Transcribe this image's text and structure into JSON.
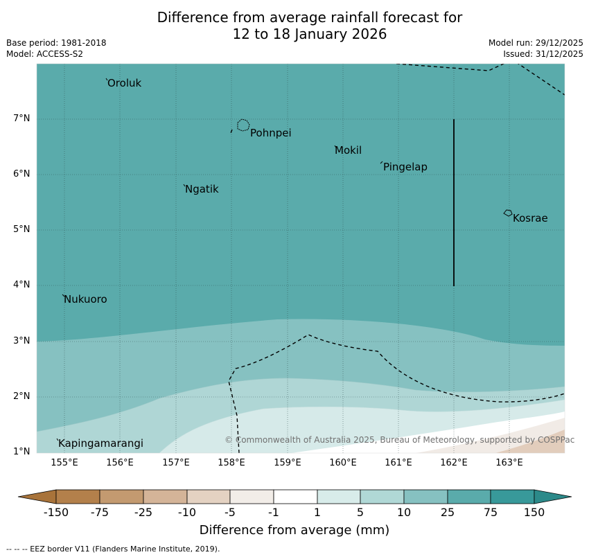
{
  "title": {
    "line1": "Difference from average rainfall forecast for",
    "line2": "12 to 18 January 2026"
  },
  "meta": {
    "base_period": "Base period: 1981-2018",
    "model": "Model: ACCESS-S2",
    "model_run": "Model run: 29/12/2025",
    "issued": "Issued: 31/12/2025"
  },
  "axes": {
    "lat_labels": [
      "7°N",
      "6°N",
      "5°N",
      "4°N",
      "3°N",
      "2°N",
      "1°N"
    ],
    "lon_labels": [
      "155°E",
      "156°E",
      "157°E",
      "158°E",
      "159°E",
      "160°E",
      "161°E",
      "162°E",
      "163°E"
    ]
  },
  "places": {
    "oroluk": "Oroluk",
    "pohnpei": "Pohnpei",
    "mokil": "Mokil",
    "pingelap": "Pingelap",
    "ngatik": "Ngatik",
    "kosrae": "Kosrae",
    "nukuoro": "Nukuoro",
    "kapingamarangi": "Kapingamarangi"
  },
  "copyright": "© Commonwealth of Australia 2025, Bureau of Meteorology, supported by COSPPac",
  "colorbar": {
    "title": "Difference from average (mm)",
    "labels": [
      "-150",
      "-75",
      "-25",
      "-10",
      "-5",
      "-1",
      "1",
      "5",
      "10",
      "25",
      "75",
      "150"
    ],
    "colors": [
      "#a8733a",
      "#b3804b",
      "#c39a70",
      "#d4b498",
      "#e4d2c2",
      "#f2ede8",
      "#ffffff",
      "#d8ecea",
      "#b0d8d6",
      "#86c1c1",
      "#5aabab",
      "#38999a",
      "#2c8a8a"
    ]
  },
  "legend_footnote": "--  --  -- EEZ border V11 (Flanders Marine Institute, 2019).",
  "colors": {
    "bin_75": "#5aabab",
    "bin_25": "#86c1c1",
    "bin_10": "#afd6d5",
    "bin_5": "#d6eae9",
    "bin_1": "#ffffff",
    "bin_m1": "#f1ebe6",
    "bin_m5": "#e2cdbc"
  }
}
